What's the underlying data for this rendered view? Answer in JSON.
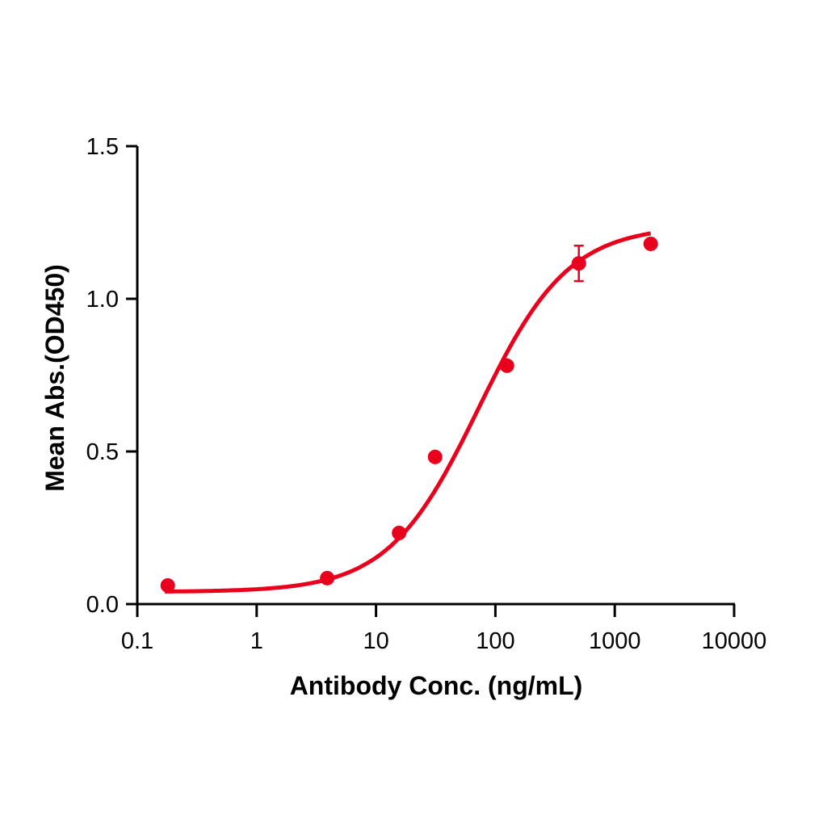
{
  "chart_data": {
    "type": "scatter",
    "title": "",
    "xlabel": "Antibody Conc. (ng/mL)",
    "ylabel": "Mean Abs.(OD450)",
    "xscale": "log",
    "xlim": [
      0.1,
      10000
    ],
    "ylim": [
      0,
      1.5
    ],
    "x_ticks": [
      "0.1",
      "1",
      "10",
      "100",
      "1000",
      "10000"
    ],
    "y_ticks": [
      "0.0",
      "0.5",
      "1.0",
      "1.5"
    ],
    "grid": false,
    "legend": null,
    "series": [
      {
        "name": "Mean Abs.",
        "color": "#e8001c",
        "x": [
          0.18,
          3.9,
          15.6,
          31.25,
          125,
          500,
          2000
        ],
        "y": [
          0.061,
          0.085,
          0.233,
          0.482,
          0.781,
          1.116,
          1.18
        ],
        "error": [
          0,
          0,
          0,
          0,
          0,
          0.058,
          0
        ]
      }
    ],
    "fit": {
      "type": "4PL",
      "bottom": 0.04,
      "top": 1.24,
      "ec50": 72,
      "hill": 1.15,
      "x_range": [
        0.17,
        2000
      ]
    }
  }
}
